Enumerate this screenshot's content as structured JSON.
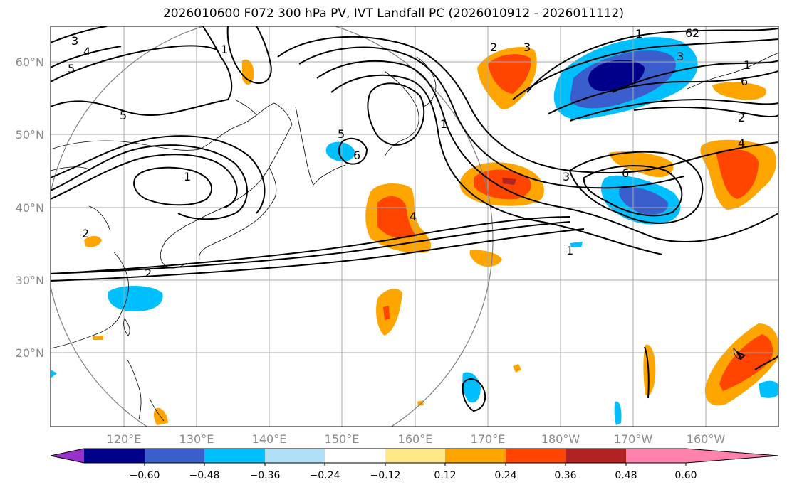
{
  "title": "2026010600 F072 300 hPa PV, IVT Landfall PC (2026010912 - 2026011112)",
  "axes": {
    "lon_ticks": [
      "120°E",
      "130°E",
      "140°E",
      "150°E",
      "160°E",
      "170°E",
      "180°W",
      "170°W",
      "160°W"
    ],
    "lat_ticks": [
      "60°N",
      "50°N",
      "40°N",
      "30°N",
      "20°N"
    ]
  },
  "contour_labels": [
    "3",
    "4",
    "5",
    "5",
    "1",
    "2",
    "2",
    "5",
    "6",
    "1",
    "3",
    "6",
    "1",
    "4",
    "2",
    "3",
    "1",
    "6",
    "2",
    "4",
    "1",
    "6",
    "3",
    "1",
    "2"
  ],
  "colorbar": {
    "ticks": [
      "−0.60",
      "−0.48",
      "−0.36",
      "−0.24",
      "−0.12",
      "0.12",
      "0.24",
      "0.36",
      "0.48",
      "0.60"
    ],
    "colors": [
      "#9932cc",
      "#00008b",
      "#3a5fcd",
      "#00bfff",
      "#b0e0f8",
      "#ffffff",
      "#ffe88a",
      "#ffa500",
      "#ff4500",
      "#b22222",
      "#ff82ab"
    ]
  }
}
